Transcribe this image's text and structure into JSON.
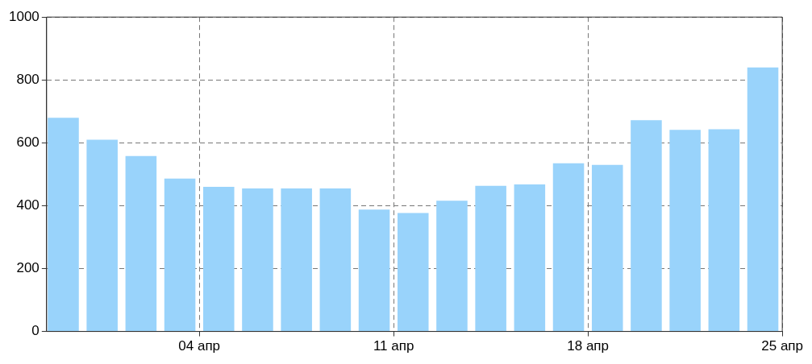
{
  "chart_data": {
    "type": "bar",
    "x": [
      -0.9,
      0.5,
      1.9,
      3.3,
      4.7,
      6.1,
      7.5,
      8.9,
      10.3,
      11.7,
      13.1,
      14.5,
      15.9,
      17.3,
      18.7,
      20.1,
      21.5,
      22.9,
      24.3
    ],
    "values": [
      680,
      610,
      558,
      486,
      460,
      455,
      455,
      455,
      388,
      377,
      416,
      463,
      468,
      535,
      530,
      672,
      641,
      643,
      840
    ],
    "color": "#99d3fb",
    "xlim": [
      -1.5,
      25
    ],
    "xticks": [
      {
        "value": 4,
        "label": "04 апр"
      },
      {
        "value": 11,
        "label": "11 апр"
      },
      {
        "value": 18,
        "label": "18 апр"
      },
      {
        "value": 25,
        "label": "25 апр"
      }
    ],
    "ylim": [
      0,
      1000
    ],
    "yticks": [
      0,
      200,
      400,
      600,
      800,
      1000
    ],
    "grid": true,
    "legend": false
  }
}
